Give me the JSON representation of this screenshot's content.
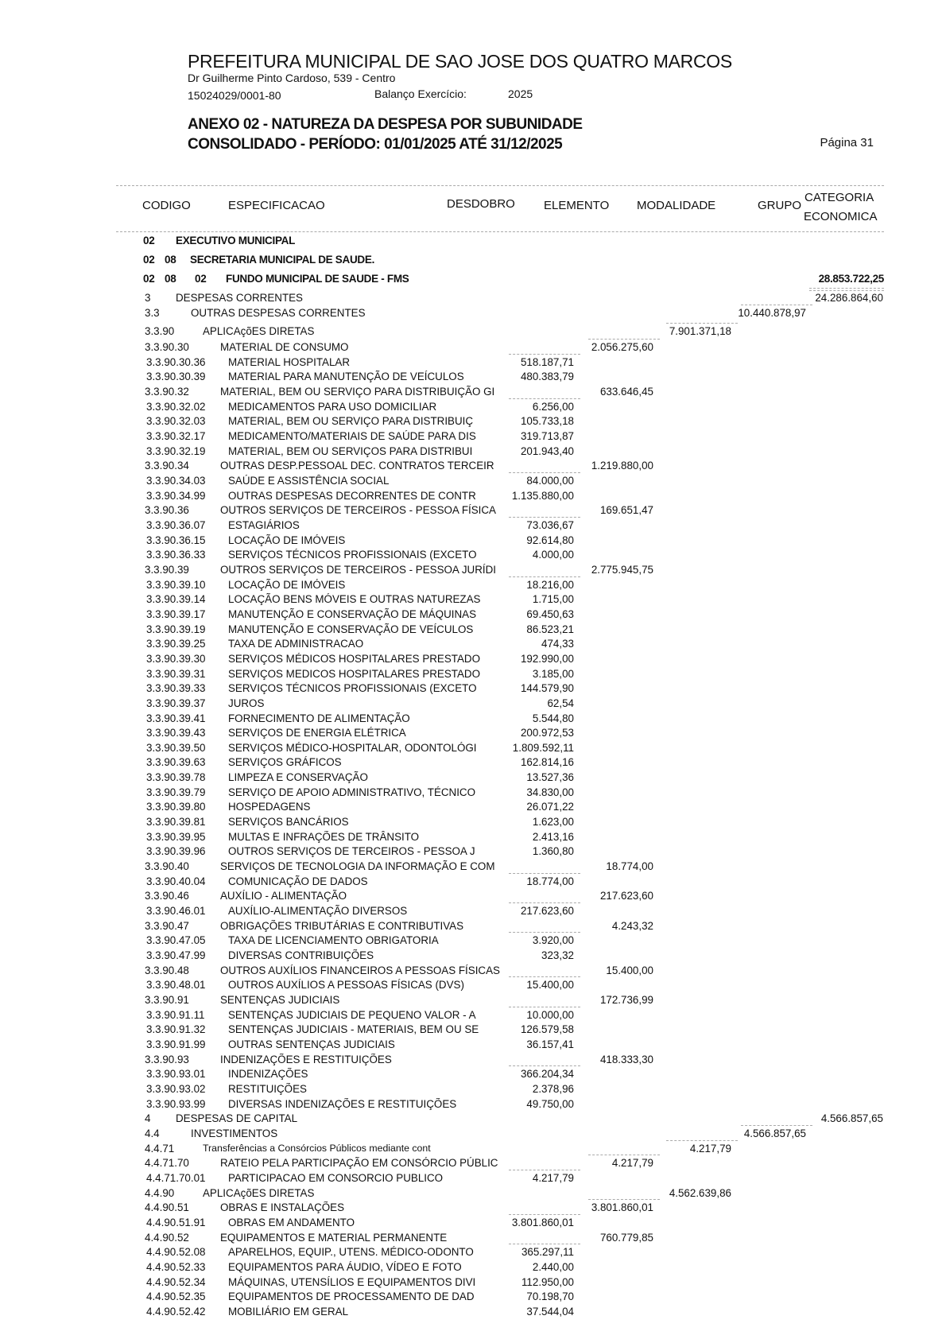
{
  "header": {
    "title": "PREFEITURA MUNICIPAL DE SAO JOSE DOS QUATRO MARCOS",
    "address": "Dr Guilherme Pinto Cardoso, 539 - Centro",
    "cnpj": "15024029/0001-80",
    "exercise_label": "Balanço Exercício:",
    "exercise_year": "2025",
    "report_title": "ANEXO 02 - NATUREZA DA DESPESA POR SUBUNIDADE",
    "period": "CONSOLIDADO - PERÍODO: 01/01/2025 ATÉ 31/12/2025",
    "page": "Página 31"
  },
  "columns": {
    "codigo": "CODIGO",
    "especificacao": "ESPECIFICACAO",
    "desdobro": "DESDOBRO",
    "elemento": "ELEMENTO",
    "modalidade": "MODALIDADE",
    "grupo": "GRUPO",
    "categoria_1": "CATEGORIA",
    "categoria_2": "ECONOMICA"
  },
  "sections": {
    "orgao": {
      "code": "02",
      "name": "EXECUTIVO MUNICIPAL"
    },
    "unidade": {
      "code1": "02",
      "code2": "08",
      "name": "SECRETARIA MUNICIPAL DE SAUDE."
    },
    "subunidade": {
      "code1": "02",
      "code2": "08",
      "code3": "02",
      "name": "FUNDO MUNICIPAL DE SAUDE - FMS",
      "total": "28.853.722,25"
    }
  },
  "rows": [
    {
      "code": "3",
      "desc": "DESPESAS CORRENTES",
      "level": "cat",
      "value": "24.286.864,60"
    },
    {
      "code": "3.3",
      "desc": "OUTRAS DESPESAS CORRENTES",
      "level": "grp",
      "value": "10.440.878,97"
    },
    {
      "code": "3.3.90",
      "desc": "APLICAçõES DIRETAS",
      "level": "mod",
      "value": "7.901.371,18"
    },
    {
      "code": "3.3.90.30",
      "desc": "MATERIAL DE CONSUMO",
      "level": "el",
      "value": "2.056.275,60"
    },
    {
      "code": "3.3.90.30.36",
      "desc": "MATERIAL HOSPITALAR",
      "level": "d",
      "value": "518.187,71"
    },
    {
      "code": "3.3.90.30.39",
      "desc": "MATERIAL PARA MANUTENÇÃO DE VEÍCULOS",
      "level": "d",
      "value": "480.383,79"
    },
    {
      "code": "3.3.90.32",
      "desc": "MATERIAL, BEM OU SERVIÇO PARA DISTRIBUIÇÃO GI",
      "level": "el",
      "value": "633.646,45"
    },
    {
      "code": "3.3.90.32.02",
      "desc": "MEDICAMENTOS PARA USO DOMICILIAR",
      "level": "d",
      "value": "6.256,00"
    },
    {
      "code": "3.3.90.32.03",
      "desc": "MATERIAL, BEM OU SERVIÇO PARA DISTRIBUIÇ",
      "level": "d",
      "value": "105.733,18"
    },
    {
      "code": "3.3.90.32.17",
      "desc": "MEDICAMENTO/MATERIAIS DE SAÚDE PARA DIS",
      "level": "d",
      "value": "319.713,87"
    },
    {
      "code": "3.3.90.32.19",
      "desc": "MATERIAL, BEM OU SERVIÇOS PARA DISTRIBUI",
      "level": "d",
      "value": "201.943,40"
    },
    {
      "code": "3.3.90.34",
      "desc": "OUTRAS DESP.PESSOAL DEC. CONTRATOS TERCEIR",
      "level": "el",
      "value": "1.219.880,00"
    },
    {
      "code": "3.3.90.34.03",
      "desc": "SAÚDE E ASSISTÊNCIA SOCIAL",
      "level": "d",
      "value": "84.000,00"
    },
    {
      "code": "3.3.90.34.99",
      "desc": "OUTRAS DESPESAS DECORRENTES DE CONTR",
      "level": "d",
      "value": "1.135.880,00"
    },
    {
      "code": "3.3.90.36",
      "desc": "OUTROS SERVIÇOS DE TERCEIROS - PESSOA FÍSICA",
      "level": "el",
      "value": "169.651,47"
    },
    {
      "code": "3.3.90.36.07",
      "desc": "ESTAGIÁRIOS",
      "level": "d",
      "value": "73.036,67"
    },
    {
      "code": "3.3.90.36.15",
      "desc": "LOCAÇÃO DE IMÓVEIS",
      "level": "d",
      "value": "92.614,80"
    },
    {
      "code": "3.3.90.36.33",
      "desc": "SERVIÇOS TÉCNICOS PROFISSIONAIS (EXCETO",
      "level": "d",
      "value": "4.000,00"
    },
    {
      "code": "3.3.90.39",
      "desc": "OUTROS SERVIÇOS DE TERCEIROS - PESSOA JURÍDI",
      "level": "el",
      "value": "2.775.945,75"
    },
    {
      "code": "3.3.90.39.10",
      "desc": "LOCAÇÃO DE IMÓVEIS",
      "level": "d",
      "value": "18.216,00"
    },
    {
      "code": "3.3.90.39.14",
      "desc": "LOCAÇÃO BENS MÓVEIS E OUTRAS NATUREZAS",
      "level": "d",
      "value": "1.715,00"
    },
    {
      "code": "3.3.90.39.17",
      "desc": "MANUTENÇÃO E CONSERVAÇÃO DE MÁQUINAS",
      "level": "d",
      "value": "69.450,63"
    },
    {
      "code": "3.3.90.39.19",
      "desc": "MANUTENÇÃO E CONSERVAÇÃO DE VEÍCULOS",
      "level": "d",
      "value": "86.523,21"
    },
    {
      "code": "3.3.90.39.25",
      "desc": "TAXA DE ADMINISTRACAO",
      "level": "d",
      "value": "474,33"
    },
    {
      "code": "3.3.90.39.30",
      "desc": "SERVIÇOS MÉDICOS HOSPITALARES PRESTADO",
      "level": "d",
      "value": "192.990,00"
    },
    {
      "code": "3.3.90.39.31",
      "desc": "SERVIÇOS MEDICOS HOSPITALARES PRESTADO",
      "level": "d",
      "value": "3.185,00"
    },
    {
      "code": "3.3.90.39.33",
      "desc": "SERVIÇOS TÉCNICOS PROFISSIONAIS (EXCETO",
      "level": "d",
      "value": "144.579,90"
    },
    {
      "code": "3.3.90.39.37",
      "desc": "JUROS",
      "level": "d",
      "value": "62,54"
    },
    {
      "code": "3.3.90.39.41",
      "desc": "FORNECIMENTO DE ALIMENTAÇÃO",
      "level": "d",
      "value": "5.544,80"
    },
    {
      "code": "3.3.90.39.43",
      "desc": "SERVIÇOS DE ENERGIA ELÉTRICA",
      "level": "d",
      "value": "200.972,53"
    },
    {
      "code": "3.3.90.39.50",
      "desc": "SERVIÇOS MÉDICO-HOSPITALAR, ODONTOLÓGI",
      "level": "d",
      "value": "1.809.592,11"
    },
    {
      "code": "3.3.90.39.63",
      "desc": "SERVIÇOS GRÁFICOS",
      "level": "d",
      "value": "162.814,16"
    },
    {
      "code": "3.3.90.39.78",
      "desc": "LIMPEZA E CONSERVAÇÃO",
      "level": "d",
      "value": "13.527,36"
    },
    {
      "code": "3.3.90.39.79",
      "desc": "SERVIÇO DE APOIO ADMINISTRATIVO, TÉCNICO",
      "level": "d",
      "value": "34.830,00"
    },
    {
      "code": "3.3.90.39.80",
      "desc": "HOSPEDAGENS",
      "level": "d",
      "value": "26.071,22"
    },
    {
      "code": "3.3.90.39.81",
      "desc": "SERVIÇOS BANCÁRIOS",
      "level": "d",
      "value": "1.623,00"
    },
    {
      "code": "3.3.90.39.95",
      "desc": "MULTAS E INFRAÇÕES DE TRÂNSITO",
      "level": "d",
      "value": "2.413,16"
    },
    {
      "code": "3.3.90.39.96",
      "desc": "OUTROS SERVIÇOS DE TERCEIROS - PESSOA J",
      "level": "d",
      "value": "1.360,80"
    },
    {
      "code": "3.3.90.40",
      "desc": "SERVIÇOS DE TECNOLOGIA DA INFORMAÇÃO E COM",
      "level": "el",
      "value": "18.774,00"
    },
    {
      "code": "3.3.90.40.04",
      "desc": "COMUNICAÇÃO DE DADOS",
      "level": "d",
      "value": "18.774,00"
    },
    {
      "code": "3.3.90.46",
      "desc": "AUXÍLIO - ALIMENTAÇÃO",
      "level": "el",
      "value": "217.623,60"
    },
    {
      "code": "3.3.90.46.01",
      "desc": "AUXÍLIO-ALIMENTAÇÃO DIVERSOS",
      "level": "d",
      "value": "217.623,60"
    },
    {
      "code": "3.3.90.47",
      "desc": "OBRIGAÇÕES TRIBUTÁRIAS E CONTRIBUTIVAS",
      "level": "el",
      "value": "4.243,32"
    },
    {
      "code": "3.3.90.47.05",
      "desc": "TAXA DE LICENCIAMENTO OBRIGATORIA",
      "level": "d",
      "value": "3.920,00"
    },
    {
      "code": "3.3.90.47.99",
      "desc": "DIVERSAS CONTRIBUIÇÕES",
      "level": "d",
      "value": "323,32"
    },
    {
      "code": "3.3.90.48",
      "desc": "OUTROS AUXÍLIOS FINANCEIROS A PESSOAS FÍSICAS",
      "level": "el",
      "value": "15.400,00"
    },
    {
      "code": "3.3.90.48.01",
      "desc": "OUTROS AUXÍLIOS A PESSOAS FÍSICAS (DVS)",
      "level": "d",
      "value": "15.400,00"
    },
    {
      "code": "3.3.90.91",
      "desc": "SENTENÇAS JUDICIAIS",
      "level": "el",
      "value": "172.736,99"
    },
    {
      "code": "3.3.90.91.11",
      "desc": "SENTENÇAS JUDICIAIS DE PEQUENO VALOR - A",
      "level": "d",
      "value": "10.000,00"
    },
    {
      "code": "3.3.90.91.32",
      "desc": "SENTENÇAS JUDICIAIS - MATERIAIS, BEM OU SE",
      "level": "d",
      "value": "126.579,58"
    },
    {
      "code": "3.3.90.91.99",
      "desc": "OUTRAS SENTENÇAS JUDICIAIS",
      "level": "d",
      "value": "36.157,41"
    },
    {
      "code": "3.3.90.93",
      "desc": "INDENIZAÇÕES E RESTITUIÇÕES",
      "level": "el",
      "value": "418.333,30"
    },
    {
      "code": "3.3.90.93.01",
      "desc": "INDENIZAÇÕES",
      "level": "d",
      "value": "366.204,34"
    },
    {
      "code": "3.3.90.93.02",
      "desc": "RESTITUIÇÕES",
      "level": "d",
      "value": "2.378,96"
    },
    {
      "code": "3.3.90.93.99",
      "desc": "DIVERSAS INDENIZAÇÕES E RESTITUIÇÕES",
      "level": "d",
      "value": "49.750,00"
    },
    {
      "code": "4",
      "desc": "DESPESAS DE CAPITAL",
      "level": "cat",
      "value": "4.566.857,65"
    },
    {
      "code": "4.4",
      "desc": "INVESTIMENTOS",
      "level": "grp",
      "value": "4.566.857,65"
    },
    {
      "code": "4.4.71",
      "desc": "Transferências a Consórcios Públicos mediante cont",
      "level": "mod",
      "value": "4.217,79"
    },
    {
      "code": "4.4.71.70",
      "desc": "RATEIO PELA PARTICIPAÇÃO EM CONSÓRCIO PÚBLIC",
      "level": "el",
      "value": "4.217,79"
    },
    {
      "code": "4.4.71.70.01",
      "desc": "PARTICIPACAO EM CONSORCIO PUBLICO",
      "level": "d",
      "value": "4.217,79"
    },
    {
      "code": "4.4.90",
      "desc": "APLICAçõES DIRETAS",
      "level": "mod",
      "value": "4.562.639,86"
    },
    {
      "code": "4.4.90.51",
      "desc": "OBRAS E INSTALAÇÕES",
      "level": "el",
      "value": "3.801.860,01"
    },
    {
      "code": "4.4.90.51.91",
      "desc": "OBRAS EM ANDAMENTO",
      "level": "d",
      "value": "3.801.860,01"
    },
    {
      "code": "4.4.90.52",
      "desc": "EQUIPAMENTOS E MATERIAL PERMANENTE",
      "level": "el",
      "value": "760.779,85"
    },
    {
      "code": "4.4.90.52.08",
      "desc": "APARELHOS, EQUIP., UTENS. MÉDICO-ODONTO",
      "level": "d",
      "value": "365.297,11"
    },
    {
      "code": "4.4.90.52.33",
      "desc": "EQUIPAMENTOS PARA ÁUDIO, VÍDEO E FOTO",
      "level": "d",
      "value": "2.440,00"
    },
    {
      "code": "4.4.90.52.34",
      "desc": "MÁQUINAS, UTENSÍLIOS E EQUIPAMENTOS DIVI",
      "level": "d",
      "value": "112.950,00"
    },
    {
      "code": "4.4.90.52.35",
      "desc": "EQUIPAMENTOS DE PROCESSAMENTO DE DAD",
      "level": "d",
      "value": "70.198,70"
    },
    {
      "code": "4.4.90.52.42",
      "desc": "MOBILIÁRIO EM GERAL",
      "level": "d",
      "value": "37.544,04"
    }
  ]
}
